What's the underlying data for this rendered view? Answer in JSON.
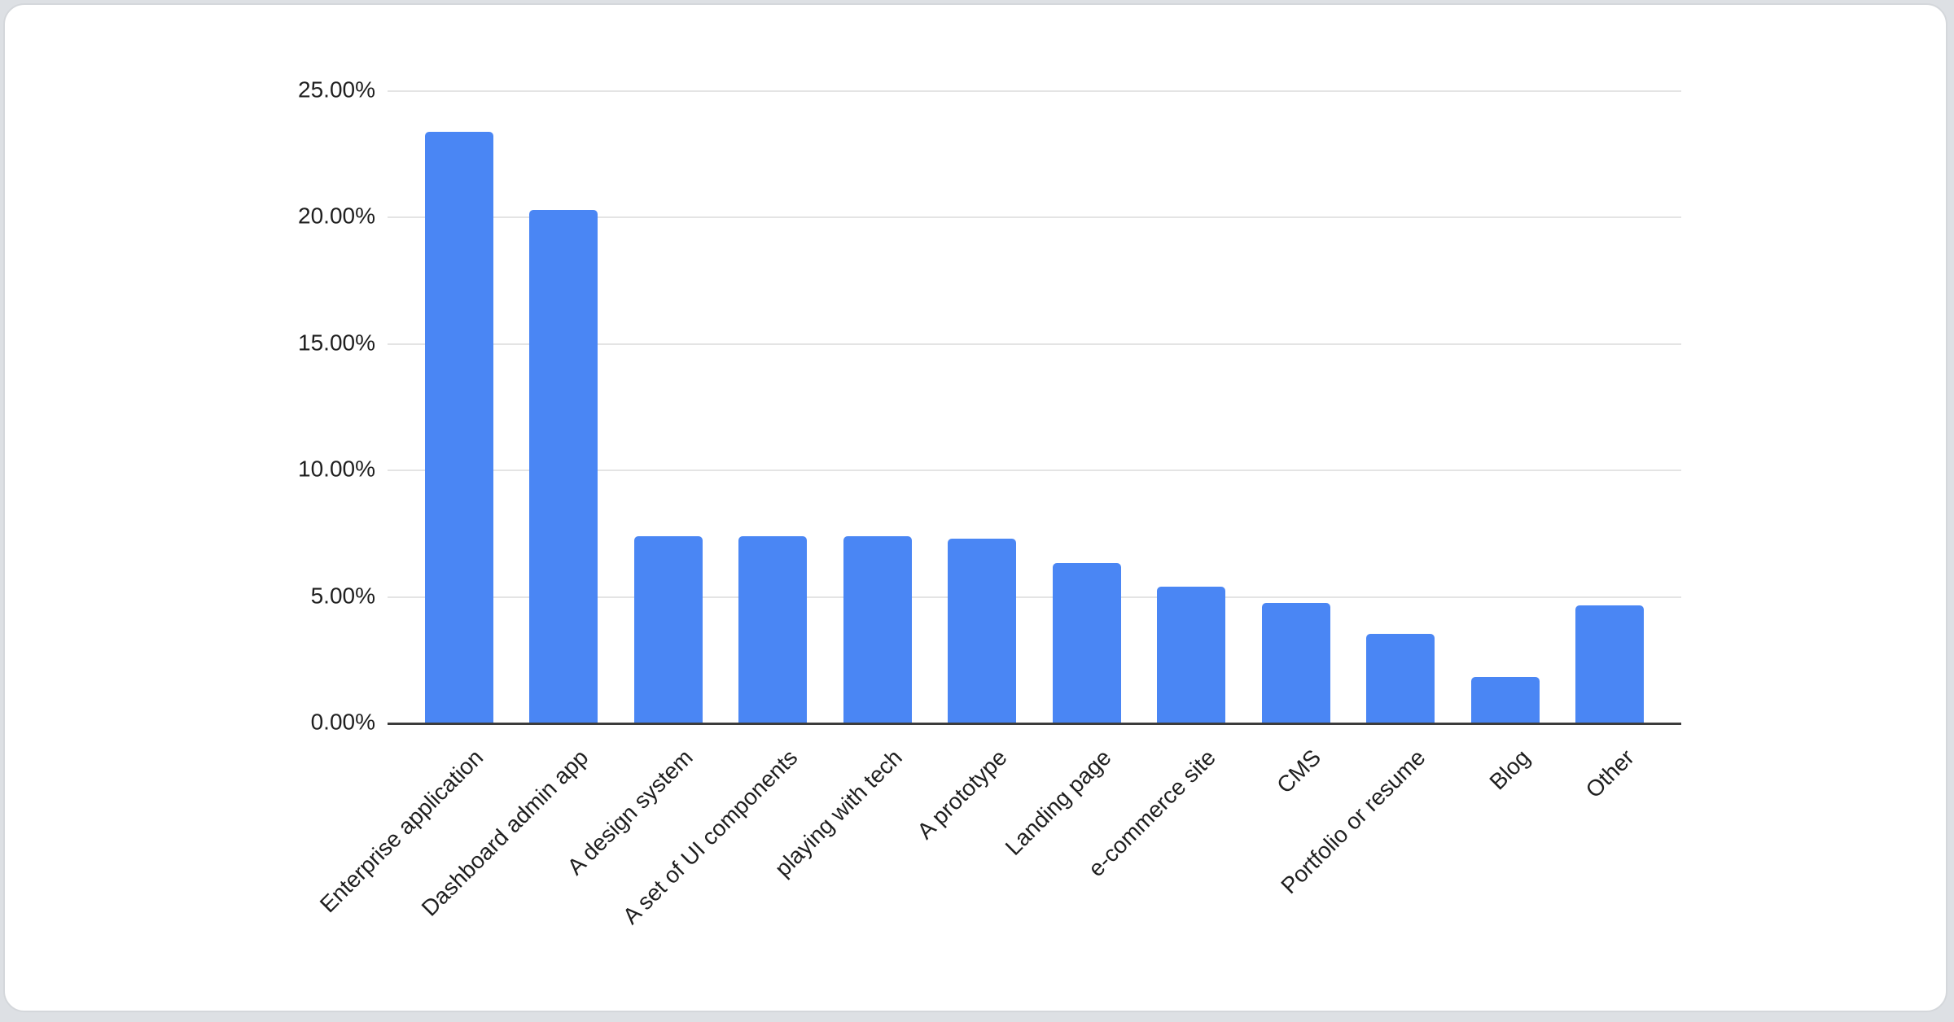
{
  "page": {
    "background_color": "#dde0e4"
  },
  "card": {
    "background_color": "#ffffff",
    "border_color": "#d4d7db"
  },
  "chart_data": {
    "type": "bar",
    "title": "",
    "xlabel": "",
    "ylabel": "",
    "categories": [
      "Enterprise application",
      "Dashboard admin app",
      "A design system",
      "A set of UI components",
      "playing with tech",
      "A prototype",
      "Landing page",
      "e-commerce site",
      "CMS",
      "Portfolio or resume",
      "Blog",
      "Other"
    ],
    "values": [
      23.4,
      20.3,
      7.4,
      7.4,
      7.4,
      7.3,
      6.35,
      5.4,
      4.75,
      3.55,
      1.85,
      4.65
    ],
    "value_unit": "percent",
    "y_ticks": [
      "0.00%",
      "5.00%",
      "10.00%",
      "15.00%",
      "20.00%",
      "25.00%"
    ],
    "ylim": [
      0,
      25
    ],
    "grid": true,
    "legend_position": "none",
    "bar_color": "#4a86f4",
    "axis_line_color": "#3c3c3c",
    "gridline_color": "#e4e4e4",
    "label_color": "#1f1f1f"
  }
}
